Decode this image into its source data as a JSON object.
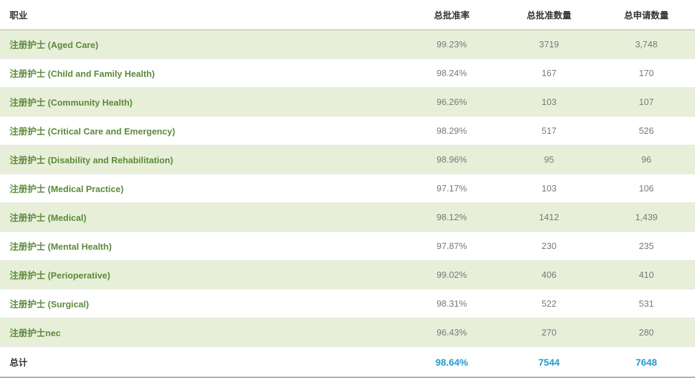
{
  "table": {
    "columns": {
      "occupation": "职业",
      "approval_rate": "总批准率",
      "approved_count": "总批准数量",
      "applied_count": "总申请数量"
    },
    "rows": [
      {
        "occupation": "注册护士 (Aged Care)",
        "approval_rate": "99.23%",
        "approved_count": "3719",
        "applied_count": "3,748"
      },
      {
        "occupation": "注册护士 (Child and Family Health)",
        "approval_rate": "98.24%",
        "approved_count": "167",
        "applied_count": "170"
      },
      {
        "occupation": "注册护士 (Community Health)",
        "approval_rate": "96.26%",
        "approved_count": "103",
        "applied_count": "107"
      },
      {
        "occupation": "注册护士 (Critical Care and Emergency)",
        "approval_rate": "98.29%",
        "approved_count": "517",
        "applied_count": "526"
      },
      {
        "occupation": "注册护士 (Disability and Rehabilitation)",
        "approval_rate": "98.96%",
        "approved_count": "95",
        "applied_count": "96"
      },
      {
        "occupation": "注册护士 (Medical Practice)",
        "approval_rate": "97.17%",
        "approved_count": "103",
        "applied_count": "106"
      },
      {
        "occupation": "注册护士 (Medical)",
        "approval_rate": "98.12%",
        "approved_count": "1412",
        "applied_count": "1,439"
      },
      {
        "occupation": "注册护士 (Mental Health)",
        "approval_rate": "97.87%",
        "approved_count": "230",
        "applied_count": "235"
      },
      {
        "occupation": "注册护士 (Perioperative)",
        "approval_rate": "99.02%",
        "approved_count": "406",
        "applied_count": "410"
      },
      {
        "occupation": "注册护士 (Surgical)",
        "approval_rate": "98.31%",
        "approved_count": "522",
        "applied_count": "531"
      },
      {
        "occupation": "注册护士nec",
        "approval_rate": "96.43%",
        "approved_count": "270",
        "applied_count": "280"
      }
    ],
    "total": {
      "label": "总计",
      "approval_rate": "98.64%",
      "approved_count": "7544",
      "applied_count": "7648"
    },
    "styles": {
      "row_odd_bg": "#e8efd9",
      "row_even_bg": "#ffffff",
      "occupation_text_color": "#5a8a3a",
      "numeric_text_color": "#777777",
      "total_numeric_color": "#1f9bd1",
      "header_border_color": "#b8b090",
      "row_border_color": "#e8e8e8",
      "font_size_body": 13,
      "font_size_total_num": 14,
      "column_widths_pct": [
        58,
        14,
        14,
        14
      ]
    }
  }
}
